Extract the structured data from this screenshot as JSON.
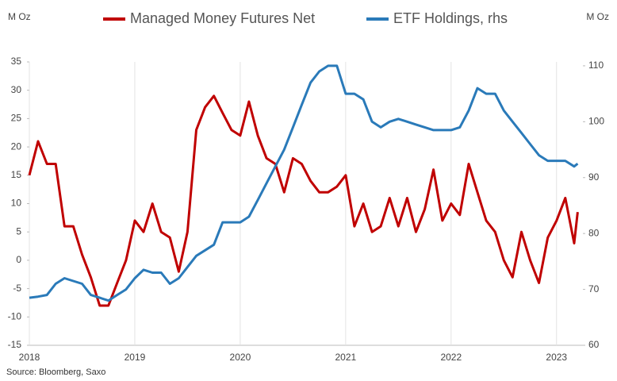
{
  "chart_data": {
    "type": "line",
    "ylabel": "M Oz",
    "y2label": "M Oz",
    "source": "Source: Bloomberg, Saxo",
    "x": [
      2018,
      2018.083,
      2018.167,
      2018.25,
      2018.333,
      2018.417,
      2018.5,
      2018.583,
      2018.667,
      2018.75,
      2018.833,
      2018.917,
      2019,
      2019.083,
      2019.167,
      2019.25,
      2019.333,
      2019.417,
      2019.5,
      2019.583,
      2019.667,
      2019.75,
      2019.833,
      2019.917,
      2020,
      2020.083,
      2020.167,
      2020.25,
      2020.333,
      2020.417,
      2020.5,
      2020.583,
      2020.667,
      2020.75,
      2020.833,
      2020.917,
      2021,
      2021.083,
      2021.167,
      2021.25,
      2021.333,
      2021.417,
      2021.5,
      2021.583,
      2021.667,
      2021.75,
      2021.833,
      2021.917,
      2022,
      2022.083,
      2022.167,
      2022.25,
      2022.333,
      2022.417,
      2022.5,
      2022.583,
      2022.667,
      2022.75,
      2022.833,
      2022.917,
      2023,
      2023.083,
      2023.167,
      2023.2
    ],
    "series": [
      {
        "name": "Managed Money Futures Net",
        "color": "#c00000",
        "axis": "y",
        "values": [
          15,
          21,
          17,
          17,
          6,
          6,
          1,
          -3,
          -8,
          -8,
          -4,
          0,
          7,
          5,
          10,
          5,
          4,
          -2,
          5,
          23,
          27,
          29,
          26,
          23,
          22,
          28,
          22,
          18,
          17,
          12,
          18,
          17,
          14,
          12,
          12,
          13,
          15,
          6,
          10,
          5,
          6,
          11,
          6,
          11,
          5,
          9,
          16,
          7,
          10,
          8,
          17,
          12,
          7,
          5,
          0,
          -3,
          5,
          0,
          -4,
          4,
          7,
          11,
          3,
          8.5
        ]
      },
      {
        "name": "ETF Holdings, rhs",
        "color": "#2a7ab9",
        "axis": "y2",
        "values": [
          68.5,
          68.7,
          69,
          71,
          72,
          71.5,
          71,
          69,
          68.5,
          68,
          69,
          70,
          72,
          73.5,
          73,
          73,
          71,
          72,
          74,
          76,
          77,
          78,
          82,
          82,
          82,
          83,
          86,
          89,
          92,
          95,
          99,
          103,
          107,
          109,
          110,
          110,
          105,
          105,
          104,
          100,
          99,
          100,
          100.5,
          100,
          99.5,
          99,
          98.5,
          98.5,
          98.5,
          99,
          102,
          106,
          105,
          105,
          102,
          100,
          98,
          96,
          94,
          93,
          93,
          93,
          92,
          92.5
        ]
      }
    ],
    "xlim": [
      2018,
      2023.25
    ],
    "xticks": [
      2018,
      2019,
      2020,
      2021,
      2022,
      2023
    ],
    "ylim": [
      -15,
      35
    ],
    "yticks": [
      -15,
      -10,
      -5,
      0,
      5,
      10,
      15,
      20,
      25,
      30,
      35
    ],
    "y2lim": [
      60,
      110.7
    ],
    "y2ticks": [
      60,
      70,
      80,
      90,
      100,
      110
    ],
    "grid": true
  }
}
